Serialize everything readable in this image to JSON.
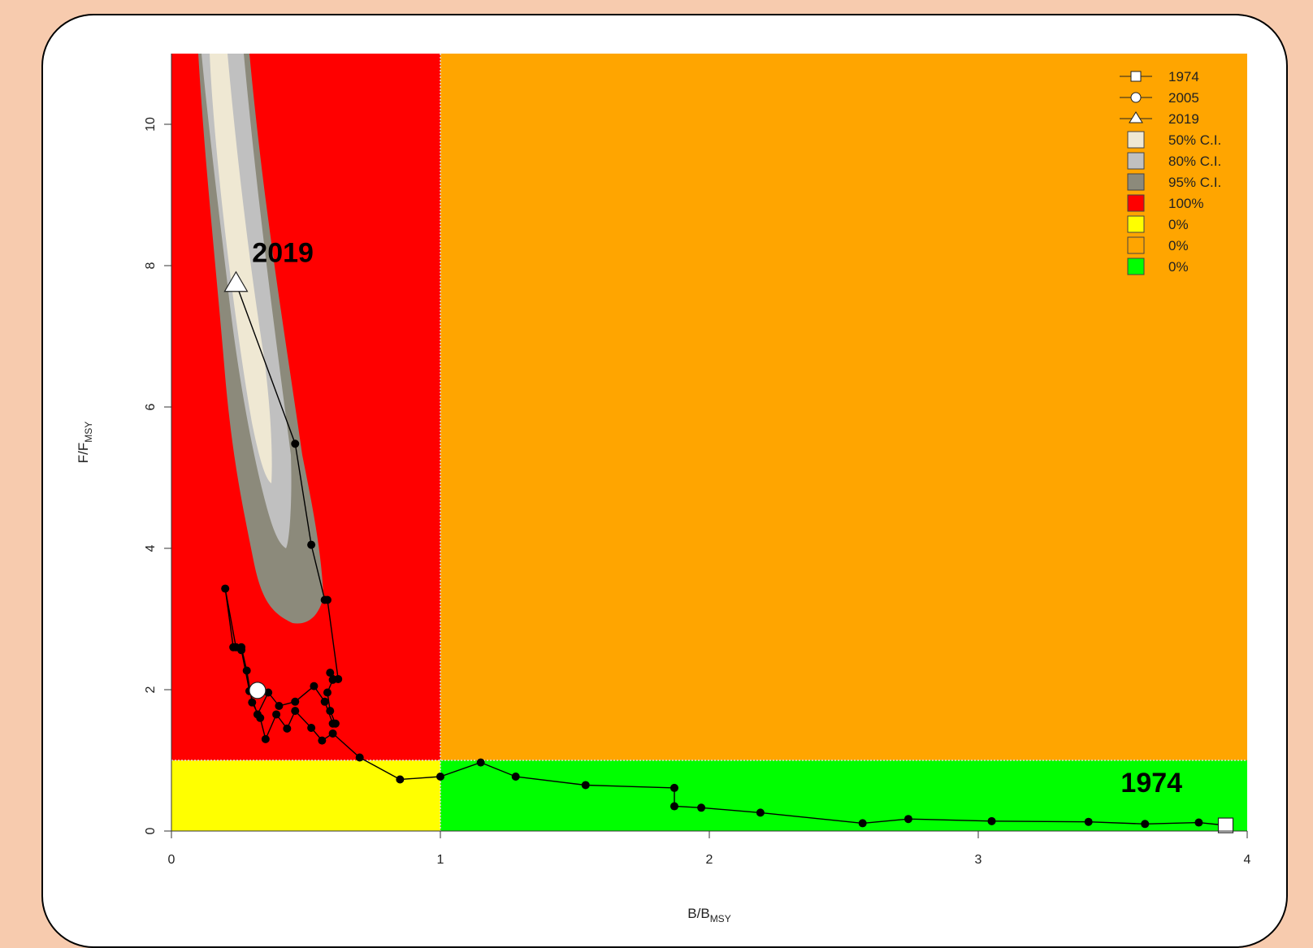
{
  "chart_data": {
    "type": "scatter",
    "xlabel": "B/B",
    "xlabel_sub": "MSY",
    "ylabel": "F/F",
    "ylabel_sub": "MSY",
    "xlim": [
      0,
      4
    ],
    "ylim": [
      0,
      11
    ],
    "xticks": [
      0,
      1,
      2,
      3,
      4
    ],
    "yticks": [
      0,
      2,
      4,
      6,
      8,
      10
    ],
    "reference_points": {
      "b": 1,
      "f": 1
    },
    "quadrant_colors": {
      "top_left": "#ff0000",
      "top_right": "#ffa500",
      "bottom_left": "#ffff00",
      "bottom_right": "#00ff00"
    },
    "ci_colors": {
      "ci50": "#efe8d3",
      "ci80": "#c0c0c0",
      "ci95": "#8c8a7b"
    },
    "trajectory": {
      "x": [
        3.92,
        3.82,
        3.62,
        3.41,
        3.05,
        2.74,
        2.57,
        2.19,
        1.97,
        1.87,
        1.87,
        1.54,
        1.28,
        1.15,
        1.0,
        0.85,
        0.7,
        0.6,
        0.56,
        0.52,
        0.46,
        0.43,
        0.39,
        0.35,
        0.33,
        0.3,
        0.28,
        0.26,
        0.24,
        0.2,
        0.23,
        0.26,
        0.29,
        0.32,
        0.36,
        0.4,
        0.46,
        0.53,
        0.57,
        0.6,
        0.61,
        0.59,
        0.58,
        0.6,
        0.59,
        0.62,
        0.58,
        0.57,
        0.52,
        0.46,
        0.24
      ],
      "y": [
        0.08,
        0.12,
        0.1,
        0.13,
        0.14,
        0.17,
        0.11,
        0.26,
        0.33,
        0.35,
        0.61,
        0.65,
        0.77,
        0.97,
        0.77,
        0.73,
        1.04,
        1.38,
        1.28,
        1.46,
        1.7,
        1.45,
        1.65,
        1.3,
        1.6,
        1.82,
        2.27,
        2.6,
        2.6,
        3.43,
        2.6,
        2.56,
        1.98,
        1.65,
        1.96,
        1.77,
        1.83,
        2.05,
        1.83,
        1.52,
        1.52,
        1.7,
        1.96,
        2.14,
        2.24,
        2.15,
        3.27,
        3.27,
        4.05,
        5.48,
        7.75
      ],
      "special": {
        "1974": {
          "x": 3.92,
          "y": 0.08,
          "marker": "square"
        },
        "2005": {
          "x": 0.32,
          "y": 1.99,
          "marker": "circle"
        },
        "2019": {
          "x": 0.24,
          "y": 7.75,
          "marker": "triangle"
        }
      }
    },
    "annotations": [
      {
        "text": "2019",
        "x": 0.3,
        "y": 8.05
      },
      {
        "text": "1974",
        "x": 3.53,
        "y": 0.55
      }
    ],
    "legend": {
      "position": "top-right",
      "items": [
        {
          "label": "1974",
          "symbol": "square-line"
        },
        {
          "label": "2005",
          "symbol": "circle-line"
        },
        {
          "label": "2019",
          "symbol": "triangle-line"
        },
        {
          "label": "50% C.I.",
          "symbol": "box",
          "color": "#efe8d3"
        },
        {
          "label": "80% C.I.",
          "symbol": "box",
          "color": "#c0c0c0"
        },
        {
          "label": "95% C.I.",
          "symbol": "box",
          "color": "#8c8a7b"
        },
        {
          "label": "100%",
          "symbol": "box",
          "color": "#ff0000"
        },
        {
          "label": "0%",
          "symbol": "box",
          "color": "#ffff00"
        },
        {
          "label": "0%",
          "symbol": "box",
          "color": "#ffa500"
        },
        {
          "label": "0%",
          "symbol": "box",
          "color": "#00ff00"
        }
      ]
    }
  }
}
